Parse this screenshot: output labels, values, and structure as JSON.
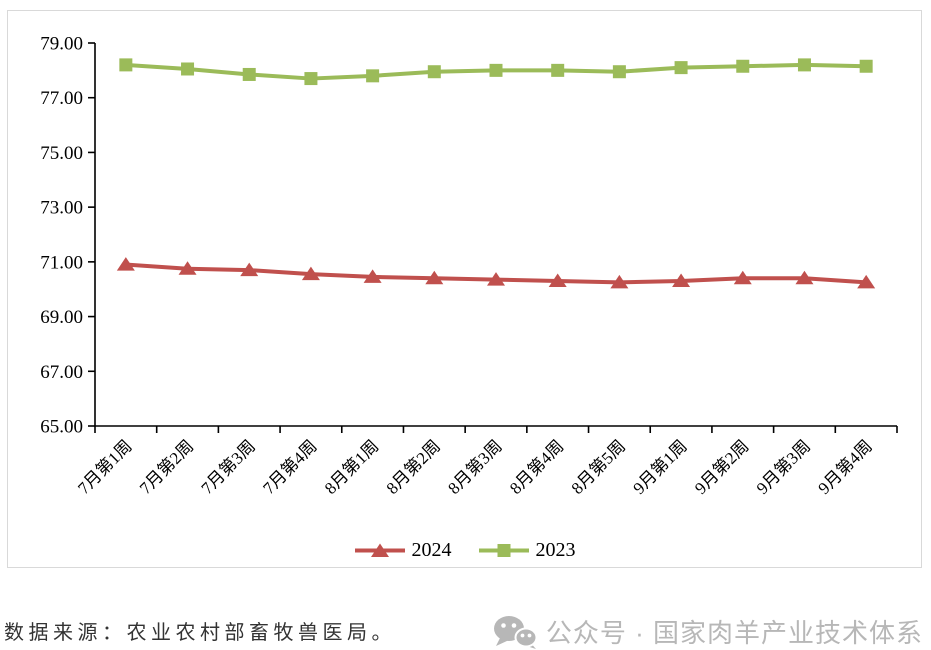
{
  "chart_data": {
    "type": "line",
    "title": "",
    "xlabel": "",
    "ylabel": "",
    "categories": [
      "7月第1周",
      "7月第2周",
      "7月第3周",
      "7月第4周",
      "8月第1周",
      "8月第2周",
      "8月第3周",
      "8月第4周",
      "8月第5周",
      "9月第1周",
      "9月第2周",
      "9月第3周",
      "9月第4周"
    ],
    "series": [
      {
        "name": "2024",
        "color": "#C0504D",
        "marker": "triangle",
        "values": [
          70.9,
          70.75,
          70.7,
          70.55,
          70.45,
          70.4,
          70.35,
          70.3,
          70.25,
          70.3,
          70.4,
          70.4,
          70.25
        ]
      },
      {
        "name": "2023",
        "color": "#9BBB59",
        "marker": "square",
        "values": [
          78.2,
          78.05,
          77.85,
          77.7,
          77.8,
          77.95,
          78.0,
          78.0,
          77.95,
          78.1,
          78.15,
          78.2,
          78.15
        ]
      }
    ],
    "ylim": [
      65,
      79
    ],
    "ytick_step": 2,
    "ytick_labels": [
      "65.00",
      "67.00",
      "69.00",
      "71.00",
      "73.00",
      "75.00",
      "77.00",
      "79.00"
    ],
    "grid": false,
    "legend_position": "bottom-center"
  },
  "footer": {
    "source_text": "数据来源：农业农村部畜牧兽医局。",
    "watermark_text": "公众号 · 国家肉羊产业技术体系"
  },
  "colors": {
    "series_2024": "#C0504D",
    "series_2023": "#9BBB59",
    "axis": "#000000",
    "chart_border": "#D9D9D9",
    "watermark": "#B7B7B7"
  },
  "icons": {
    "watermark_icon": "wechat-icon"
  }
}
